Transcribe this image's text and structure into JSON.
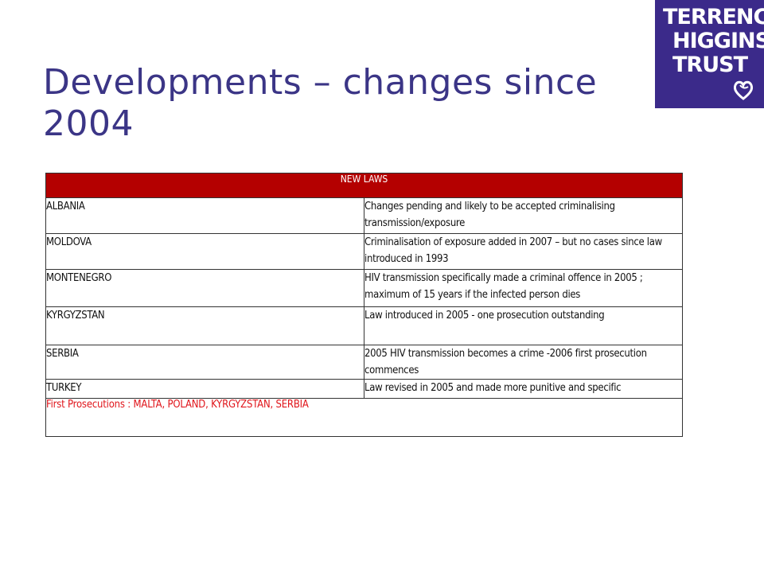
{
  "slide": {
    "title": "Developments – changes since 2004"
  },
  "logo": {
    "line1": "TERRENCE",
    "line2": "HIGGINS",
    "line3": "TRUST",
    "bg_color": "#3b2a8a"
  },
  "table": {
    "header": "NEW LAWS",
    "header_color": "#b40000",
    "rows": [
      {
        "country": "ALBANIA",
        "description": "Changes pending and likely to be accepted criminalising transmission/exposure"
      },
      {
        "country": "MOLDOVA",
        "description": "Criminalisation of exposure added in 2007 – but no cases since law introduced in 1993"
      },
      {
        "country": "MONTENEGRO",
        "description": "HIV transmission specifically made a criminal offence in 2005 ;  maximum of 15 years if the infected person dies"
      },
      {
        "country": "KYRGYZSTAN",
        "description": "Law introduced in 2005 - one prosecution outstanding"
      },
      {
        "country": "SERBIA",
        "description": "2005 HIV transmission becomes a crime -2006 first prosecution commences"
      },
      {
        "country": "TURKEY",
        "description": "Law revised in 2005 and made more punitive and specific"
      }
    ],
    "footer": "First Prosecutions :  MALTA, POLAND, KYRGYZSTAN, SERBIA",
    "footer_color": "#e0151b"
  }
}
